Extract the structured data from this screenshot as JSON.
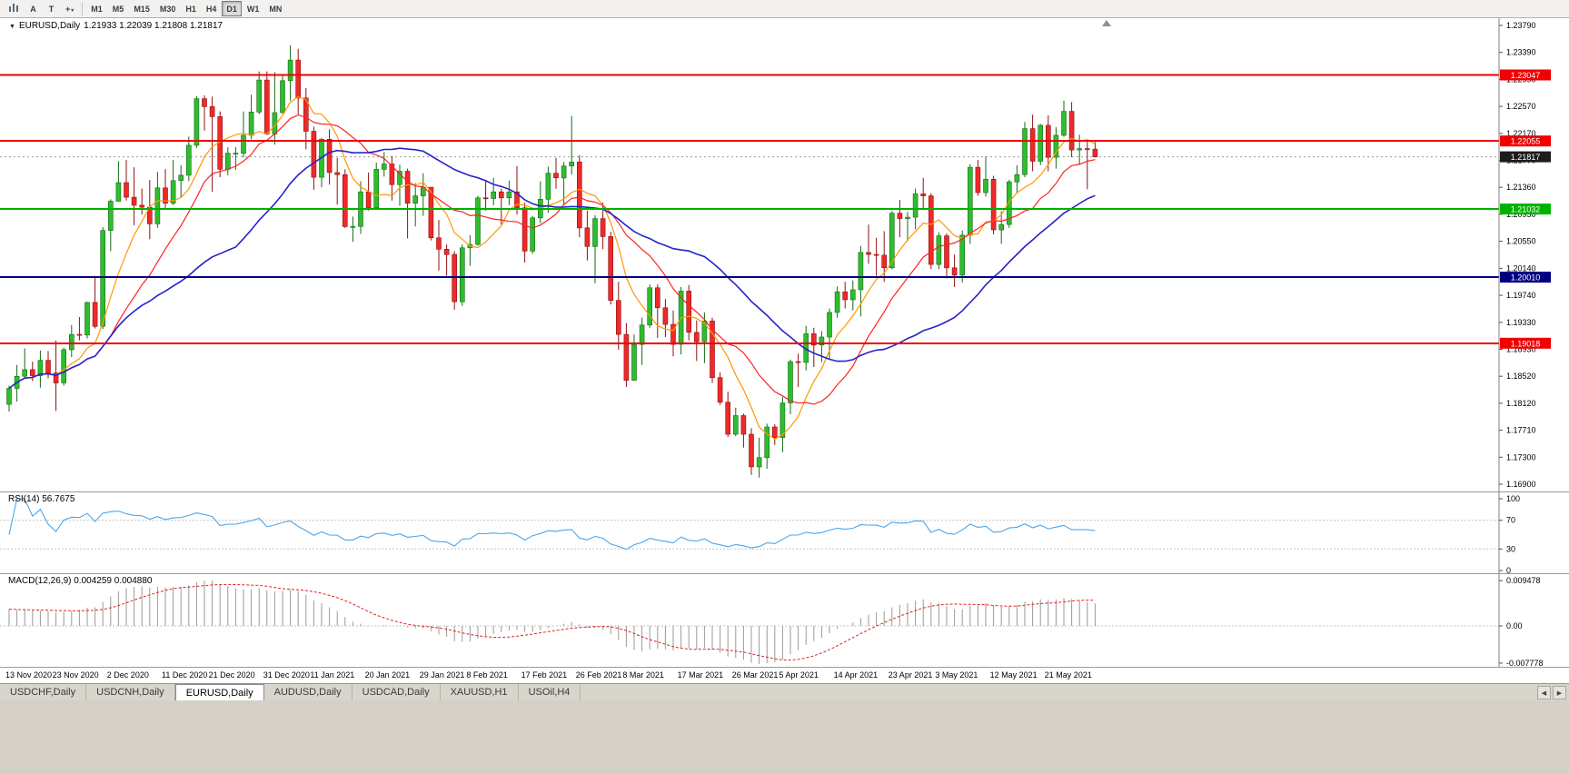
{
  "toolbar": {
    "a_label": "A",
    "t_label": "T",
    "crosshair_glyph": "+",
    "caret_glyph": "▾",
    "timeframes": [
      "M1",
      "M5",
      "M15",
      "M30",
      "H1",
      "H4",
      "D1",
      "W1",
      "MN"
    ],
    "active_timeframe": "D1"
  },
  "chart": {
    "collapse_icon": "▼",
    "symbol_title": "EURUSD,Daily",
    "ohlc": "1.21933 1.22039 1.21808 1.21817"
  },
  "indicators": {
    "rsi_label": "RSI(14) 56.7675",
    "macd_label": "MACD(12,26,9) 0.004259 0.004880"
  },
  "tabs": {
    "items": [
      "USDCHF,Daily",
      "USDCNH,Daily",
      "EURUSD,Daily",
      "AUDUSD,Daily",
      "USDCAD,Daily",
      "XAUUSD,H1",
      "USOil,H4"
    ],
    "active": "EURUSD,Daily",
    "scroll_left_icon": "◀",
    "scroll_right_icon": "▶"
  },
  "chart_data": {
    "type": "candlestick",
    "symbol": "EURUSD",
    "timeframe": "Daily",
    "last_ohlc": {
      "open": 1.21933,
      "high": 1.22039,
      "low": 1.21808,
      "close": 1.21817
    },
    "price_axis_ticks": [
      "1.23790",
      "1.23390",
      "1.22990",
      "1.22570",
      "1.22170",
      "1.21770",
      "1.21360",
      "1.20950",
      "1.20550",
      "1.20140",
      "1.19740",
      "1.19330",
      "1.18930",
      "1.18520",
      "1.18120",
      "1.17710",
      "1.17300",
      "1.16900"
    ],
    "x_axis_labels": [
      {
        "label": "13 Nov 2020",
        "index": 0
      },
      {
        "label": "23 Nov 2020",
        "index": 6
      },
      {
        "label": "2 Dec 2020",
        "index": 13
      },
      {
        "label": "11 Dec 2020",
        "index": 20
      },
      {
        "label": "21 Dec 2020",
        "index": 26
      },
      {
        "label": "31 Dec 2020",
        "index": 33
      },
      {
        "label": "11 Jan 2021",
        "index": 39
      },
      {
        "label": "20 Jan 2021",
        "index": 46
      },
      {
        "label": "29 Jan 2021",
        "index": 53
      },
      {
        "label": "8 Feb 2021",
        "index": 59
      },
      {
        "label": "17 Feb 2021",
        "index": 66
      },
      {
        "label": "26 Feb 2021",
        "index": 73
      },
      {
        "label": "8 Mar 2021",
        "index": 79
      },
      {
        "label": "17 Mar 2021",
        "index": 86
      },
      {
        "label": "26 Mar 2021",
        "index": 93
      },
      {
        "label": "5 Apr 2021",
        "index": 99
      },
      {
        "label": "14 Apr 2021",
        "index": 106
      },
      {
        "label": "23 Apr 2021",
        "index": 113
      },
      {
        "label": "3 May 2021",
        "index": 119
      },
      {
        "label": "12 May 2021",
        "index": 126
      },
      {
        "label": "21 May 2021",
        "index": 133
      }
    ],
    "levels": [
      {
        "price": 1.23047,
        "label": "1.23047",
        "color": "#f00000"
      },
      {
        "price": 1.22055,
        "label": "1.22055",
        "color": "#f00000"
      },
      {
        "price": 1.21032,
        "label": "1.21032",
        "color": "#00b200"
      },
      {
        "price": 1.2001,
        "label": "1.20010",
        "color": "#000080"
      },
      {
        "price": 1.19018,
        "label": "1.19018",
        "color": "#f00000"
      }
    ],
    "current_price": {
      "value": 1.21817,
      "label": "1.21817",
      "color": "#1c1c1c"
    },
    "colors": {
      "bull": "#2ebd2e",
      "bear": "#ef2929",
      "bull_border": "#146b14",
      "bear_border": "#8f1010",
      "background": "#ffffff"
    },
    "moving_averages": [
      {
        "name": "ma-fast-line",
        "period": 7,
        "color": "#ff9800"
      },
      {
        "name": "ma-mid-line",
        "period": 14,
        "color": "#ff2222"
      },
      {
        "name": "ma-slow-line",
        "period": 30,
        "color": "#2424c8"
      }
    ],
    "rsi": {
      "period": 14,
      "value": 56.7675,
      "color": "#4da6e8",
      "ticks": [
        "100",
        "70",
        "30",
        "0"
      ],
      "guides": [
        70,
        30
      ]
    },
    "macd": {
      "fast": 12,
      "slow": 26,
      "signal": 9,
      "value": 0.004259,
      "signal_value": 0.00488,
      "histogram_color": "#9a9a9a",
      "signal_color": "#e02020",
      "ticks": [
        {
          "label": "0.009478",
          "value": 0.009478
        },
        {
          "label": "0.00",
          "value": 0
        },
        {
          "label": "-0.007778",
          "value": -0.007778
        }
      ]
    },
    "candles": [
      [
        1.181,
        1.1838,
        1.1799,
        1.1834
      ],
      [
        1.1834,
        1.1869,
        1.1814,
        1.1852
      ],
      [
        1.1852,
        1.1894,
        1.185,
        1.1862
      ],
      [
        1.1862,
        1.1874,
        1.1845,
        1.1853
      ],
      [
        1.1853,
        1.1891,
        1.1835,
        1.1876
      ],
      [
        1.1876,
        1.189,
        1.1849,
        1.1857
      ],
      [
        1.1857,
        1.1906,
        1.18,
        1.1842
      ],
      [
        1.1842,
        1.1895,
        1.1838,
        1.1892
      ],
      [
        1.1892,
        1.1929,
        1.1881,
        1.1915
      ],
      [
        1.1915,
        1.1941,
        1.1906,
        1.1914
      ],
      [
        1.1914,
        1.1964,
        1.1909,
        1.1963
      ],
      [
        1.1963,
        1.2003,
        1.1924,
        1.1927
      ],
      [
        1.1927,
        1.2076,
        1.1923,
        1.2071
      ],
      [
        1.2071,
        1.2118,
        1.204,
        1.2115
      ],
      [
        1.2115,
        1.2175,
        1.2114,
        1.2143
      ],
      [
        1.2143,
        1.2177,
        1.2116,
        1.2121
      ],
      [
        1.2121,
        1.2166,
        1.2079,
        1.2109
      ],
      [
        1.2109,
        1.2134,
        1.2095,
        1.2106
      ],
      [
        1.2106,
        1.2147,
        1.2058,
        1.2081
      ],
      [
        1.2081,
        1.2159,
        1.2075,
        1.2135
      ],
      [
        1.2135,
        1.2163,
        1.2103,
        1.2112
      ],
      [
        1.2112,
        1.2177,
        1.2109,
        1.2146
      ],
      [
        1.2146,
        1.2169,
        1.2121,
        1.2154
      ],
      [
        1.2154,
        1.2212,
        1.2145,
        1.2199
      ],
      [
        1.2199,
        1.2273,
        1.2195,
        1.2269
      ],
      [
        1.2269,
        1.2274,
        1.2221,
        1.2257
      ],
      [
        1.2257,
        1.2272,
        1.2129,
        1.2242
      ],
      [
        1.2242,
        1.225,
        1.2151,
        1.2163
      ],
      [
        1.2163,
        1.2196,
        1.2154,
        1.2187
      ],
      [
        1.2187,
        1.2196,
        1.2162,
        1.2187
      ],
      [
        1.2187,
        1.225,
        1.2181,
        1.2214
      ],
      [
        1.2214,
        1.2275,
        1.2208,
        1.2249
      ],
      [
        1.2249,
        1.231,
        1.2246,
        1.2297
      ],
      [
        1.2297,
        1.231,
        1.2214,
        1.2216
      ],
      [
        1.2216,
        1.2309,
        1.22,
        1.2248
      ],
      [
        1.2248,
        1.2306,
        1.2247,
        1.2296
      ],
      [
        1.2296,
        1.2349,
        1.2266,
        1.2327
      ],
      [
        1.2327,
        1.2344,
        1.2245,
        1.227
      ],
      [
        1.227,
        1.2285,
        1.2193,
        1.222
      ],
      [
        1.222,
        1.2227,
        1.2132,
        1.2151
      ],
      [
        1.2151,
        1.221,
        1.2136,
        1.2208
      ],
      [
        1.2208,
        1.2223,
        1.214,
        1.2158
      ],
      [
        1.2158,
        1.218,
        1.211,
        1.2155
      ],
      [
        1.2155,
        1.2163,
        1.2075,
        1.2077
      ],
      [
        1.2077,
        1.2092,
        1.2054,
        1.2077
      ],
      [
        1.2077,
        1.2145,
        1.2066,
        1.2129
      ],
      [
        1.2129,
        1.2158,
        1.2101,
        1.2105
      ],
      [
        1.2105,
        1.2173,
        1.2103,
        1.2163
      ],
      [
        1.2163,
        1.2189,
        1.2152,
        1.2171
      ],
      [
        1.2171,
        1.2183,
        1.2116,
        1.214
      ],
      [
        1.214,
        1.217,
        1.2108,
        1.216
      ],
      [
        1.216,
        1.2164,
        1.2059,
        1.2112
      ],
      [
        1.2112,
        1.2142,
        1.2077,
        1.2123
      ],
      [
        1.2123,
        1.2157,
        1.2093,
        1.2136
      ],
      [
        1.2136,
        1.2136,
        1.2056,
        1.206
      ],
      [
        1.206,
        1.2087,
        1.2011,
        1.2043
      ],
      [
        1.2043,
        1.205,
        1.2003,
        1.2035
      ],
      [
        1.2035,
        1.204,
        1.1952,
        1.1964
      ],
      [
        1.1964,
        1.205,
        1.1958,
        1.2045
      ],
      [
        1.2045,
        1.2064,
        1.2018,
        1.205
      ],
      [
        1.205,
        1.2123,
        1.2048,
        1.212
      ],
      [
        1.212,
        1.2145,
        1.2101,
        1.2119
      ],
      [
        1.2119,
        1.215,
        1.2109,
        1.2129
      ],
      [
        1.2129,
        1.2134,
        1.208,
        1.212
      ],
      [
        1.212,
        1.2146,
        1.2109,
        1.2129
      ],
      [
        1.2129,
        1.2168,
        1.2095,
        1.2105
      ],
      [
        1.2105,
        1.2113,
        1.2023,
        1.204
      ],
      [
        1.204,
        1.2093,
        1.2036,
        1.209
      ],
      [
        1.209,
        1.2145,
        1.2082,
        1.2118
      ],
      [
        1.2118,
        1.2167,
        1.2098,
        1.2157
      ],
      [
        1.2157,
        1.218,
        1.2134,
        1.215
      ],
      [
        1.215,
        1.2174,
        1.2109,
        1.2168
      ],
      [
        1.2168,
        1.2243,
        1.2155,
        1.2174
      ],
      [
        1.2174,
        1.2184,
        1.2061,
        1.2075
      ],
      [
        1.2075,
        1.2101,
        1.2026,
        1.2047
      ],
      [
        1.2047,
        1.2094,
        1.1992,
        1.2089
      ],
      [
        1.2089,
        1.2113,
        1.2043,
        1.2062
      ],
      [
        1.2062,
        1.2069,
        1.196,
        1.1966
      ],
      [
        1.1966,
        1.1994,
        1.1892,
        1.1915
      ],
      [
        1.1915,
        1.1932,
        1.1836,
        1.1846
      ],
      [
        1.1846,
        1.1915,
        1.1846,
        1.19
      ],
      [
        1.19,
        1.194,
        1.1869,
        1.1929
      ],
      [
        1.1929,
        1.199,
        1.1925,
        1.1985
      ],
      [
        1.1985,
        1.199,
        1.191,
        1.1955
      ],
      [
        1.1955,
        1.1968,
        1.1911,
        1.193
      ],
      [
        1.193,
        1.1951,
        1.1882,
        1.19
      ],
      [
        1.19,
        1.1986,
        1.1885,
        1.198
      ],
      [
        1.198,
        1.1989,
        1.1906,
        1.1918
      ],
      [
        1.1918,
        1.1936,
        1.1875,
        1.1904
      ],
      [
        1.1904,
        1.1948,
        1.1872,
        1.1935
      ],
      [
        1.1935,
        1.194,
        1.1842,
        1.185
      ],
      [
        1.185,
        1.1858,
        1.1809,
        1.1813
      ],
      [
        1.1813,
        1.1829,
        1.1761,
        1.1765
      ],
      [
        1.1765,
        1.1805,
        1.1762,
        1.1793
      ],
      [
        1.1793,
        1.1796,
        1.1745,
        1.1765
      ],
      [
        1.1765,
        1.1774,
        1.1704,
        1.1716
      ],
      [
        1.1716,
        1.176,
        1.17,
        1.173
      ],
      [
        1.173,
        1.1781,
        1.1713,
        1.1776
      ],
      [
        1.1776,
        1.178,
        1.1749,
        1.176
      ],
      [
        1.176,
        1.1821,
        1.1738,
        1.1812
      ],
      [
        1.1812,
        1.1877,
        1.1795,
        1.1874
      ],
      [
        1.1874,
        1.1886,
        1.1836,
        1.1873
      ],
      [
        1.1873,
        1.1928,
        1.1861,
        1.1916
      ],
      [
        1.1916,
        1.1925,
        1.1866,
        1.1899
      ],
      [
        1.1899,
        1.192,
        1.1873,
        1.1911
      ],
      [
        1.1911,
        1.1954,
        1.1878,
        1.1948
      ],
      [
        1.1948,
        1.1987,
        1.194,
        1.1979
      ],
      [
        1.1979,
        1.1994,
        1.1954,
        1.1967
      ],
      [
        1.1967,
        1.1996,
        1.1951,
        1.1982
      ],
      [
        1.1982,
        1.2048,
        1.1942,
        1.2038
      ],
      [
        1.2038,
        1.208,
        1.2021,
        1.2035
      ],
      [
        1.2035,
        1.206,
        1.2003,
        1.2034
      ],
      [
        1.2034,
        1.207,
        1.1994,
        1.2015
      ],
      [
        1.2015,
        1.21,
        1.2013,
        1.2097
      ],
      [
        1.2097,
        1.2117,
        1.2061,
        1.2089
      ],
      [
        1.2089,
        1.2099,
        1.2055,
        1.2091
      ],
      [
        1.2091,
        1.2134,
        1.2073,
        1.2126
      ],
      [
        1.2126,
        1.215,
        1.2103,
        1.2123
      ],
      [
        1.2123,
        1.2127,
        1.2013,
        1.202
      ],
      [
        1.202,
        1.2068,
        1.2013,
        1.2063
      ],
      [
        1.2063,
        1.2067,
        1.1999,
        1.2015
      ],
      [
        1.2015,
        1.2035,
        1.1986,
        1.2004
      ],
      [
        1.2004,
        1.2071,
        1.1993,
        1.2064
      ],
      [
        1.2064,
        1.2171,
        1.2051,
        1.2166
      ],
      [
        1.2166,
        1.2177,
        1.2123,
        1.2128
      ],
      [
        1.2128,
        1.2182,
        1.2122,
        1.2148
      ],
      [
        1.2148,
        1.2153,
        1.2065,
        1.2072
      ],
      [
        1.2072,
        1.21,
        1.2051,
        1.208
      ],
      [
        1.208,
        1.2147,
        1.2075,
        1.2144
      ],
      [
        1.2144,
        1.2169,
        1.2127,
        1.2155
      ],
      [
        1.2155,
        1.2234,
        1.2151,
        1.2224
      ],
      [
        1.2224,
        1.2245,
        1.216,
        1.2175
      ],
      [
        1.2175,
        1.2231,
        1.2169,
        1.2229
      ],
      [
        1.2229,
        1.2244,
        1.216,
        1.2181
      ],
      [
        1.2181,
        1.2226,
        1.2164,
        1.2214
      ],
      [
        1.2214,
        1.2266,
        1.2212,
        1.225
      ],
      [
        1.225,
        1.2264,
        1.2181,
        1.2192
      ],
      [
        1.2192,
        1.2215,
        1.2171,
        1.2194
      ],
      [
        1.2194,
        1.2205,
        1.2133,
        1.2193
      ],
      [
        1.21933,
        1.22039,
        1.21808,
        1.21817
      ]
    ]
  }
}
